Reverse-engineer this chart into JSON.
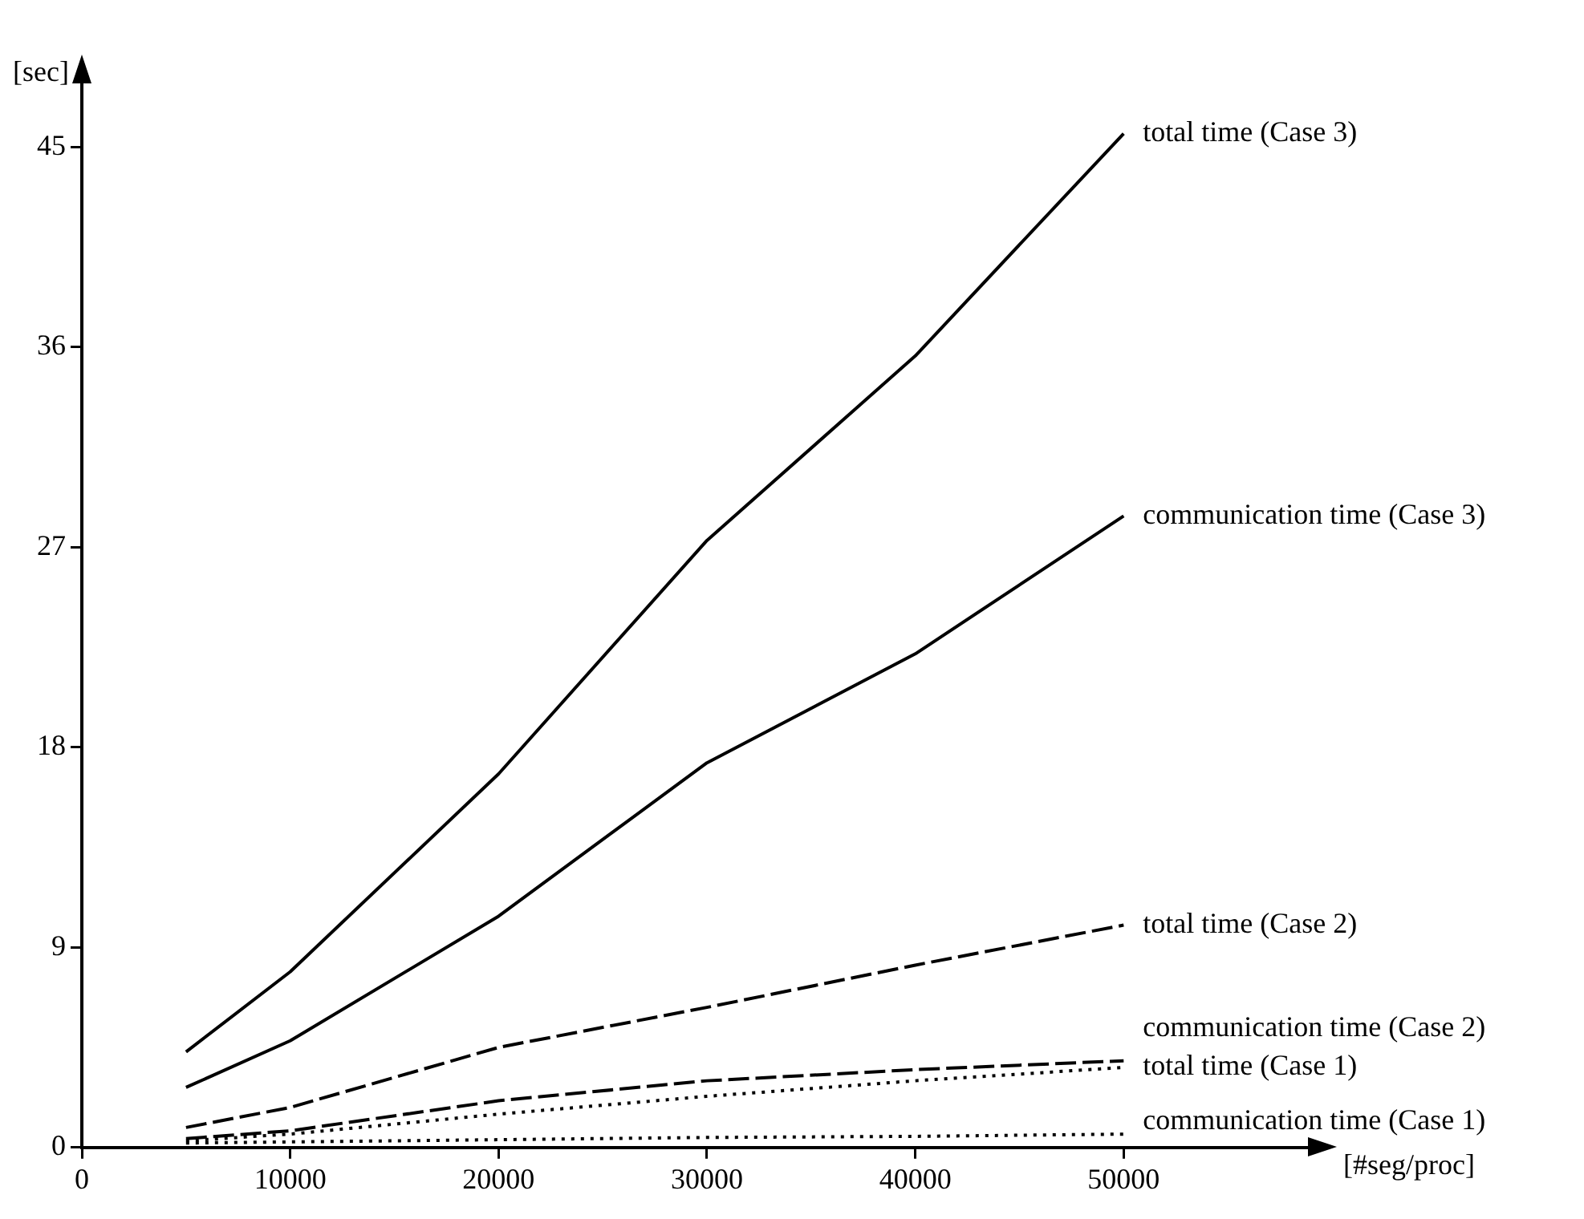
{
  "chart_data": {
    "type": "line",
    "xlabel": "[#seg/proc]",
    "ylabel": "[sec]",
    "x": [
      5000,
      10000,
      20000,
      30000,
      40000,
      50000
    ],
    "xlim": [
      0,
      59000
    ],
    "xticks": [
      0,
      10000,
      20000,
      30000,
      40000,
      50000
    ],
    "ylim": [
      0,
      48
    ],
    "yticks": [
      0,
      9,
      18,
      27,
      36,
      45
    ],
    "grid": false,
    "legend": false,
    "marker": "none",
    "series": [
      {
        "name": "total time (Case 3)",
        "color": "#000000",
        "line_style": "solid",
        "values": [
          4.3,
          7.9,
          16.8,
          27.3,
          35.6,
          45.6
        ]
      },
      {
        "name": "communication time (Case 3)",
        "color": "#000000",
        "line_style": "solid",
        "values": [
          2.7,
          4.8,
          10.4,
          17.3,
          22.2,
          28.4
        ]
      },
      {
        "name": "total time (Case 2)",
        "color": "#000000",
        "line_style": "dashed",
        "values": [
          0.9,
          1.8,
          4.5,
          6.3,
          8.2,
          10.0
        ]
      },
      {
        "name": "communication time (Case 2)",
        "color": "#000000",
        "line_style": "dashed",
        "values": [
          0.4,
          0.75,
          2.1,
          3.0,
          3.5,
          3.9
        ]
      },
      {
        "name": "total time (Case 1)",
        "color": "#000000",
        "line_style": "dotted",
        "values": [
          0.3,
          0.6,
          1.5,
          2.3,
          3.0,
          3.6
        ]
      },
      {
        "name": "communication time (Case 1)",
        "color": "#000000",
        "line_style": "dotted",
        "values": [
          0.2,
          0.25,
          0.35,
          0.45,
          0.5,
          0.6
        ]
      }
    ]
  }
}
